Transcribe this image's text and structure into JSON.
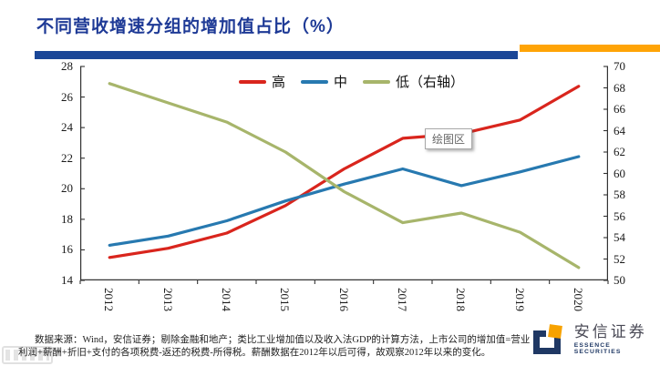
{
  "header": {
    "title": "不同营收增速分组的增加值占比（%）"
  },
  "legend": [
    {
      "label": "高",
      "color": "#D9251D"
    },
    {
      "label": "中",
      "color": "#2779B0"
    },
    {
      "label": "低（右轴）",
      "color": "#A7B56B"
    }
  ],
  "tooltip": {
    "label": "绘图区"
  },
  "chart_data": {
    "type": "line",
    "title": "不同营收增速分组的增加值占比（%）",
    "categories": [
      "2012",
      "2013",
      "2014",
      "2015",
      "2016",
      "2017",
      "2018",
      "2019",
      "2020"
    ],
    "series": [
      {
        "name": "高",
        "axis": "left",
        "color": "#D9251D",
        "values": [
          15.5,
          16.1,
          17.1,
          18.9,
          21.3,
          23.3,
          23.6,
          24.5,
          26.7
        ]
      },
      {
        "name": "中",
        "axis": "left",
        "color": "#2779B0",
        "values": [
          16.3,
          16.9,
          17.9,
          19.2,
          20.3,
          21.3,
          20.2,
          21.1,
          22.1
        ]
      },
      {
        "name": "低（右轴）",
        "axis": "right",
        "color": "#A7B56B",
        "values": [
          68.4,
          66.6,
          64.8,
          62.0,
          58.3,
          55.4,
          56.3,
          54.5,
          51.2
        ]
      }
    ],
    "left_axis": {
      "min": 14,
      "max": 28,
      "ticks": [
        14,
        16,
        18,
        20,
        22,
        24,
        26,
        28
      ]
    },
    "right_axis": {
      "min": 50,
      "max": 70,
      "ticks": [
        50,
        52,
        54,
        56,
        58,
        60,
        62,
        64,
        66,
        68,
        70
      ]
    },
    "legend_position": "top-center",
    "grid": false,
    "annotations": [
      "绘图区"
    ]
  },
  "footer": {
    "line1": "数据来源：Wind，安信证券；剔除金融和地产；类比工业增加值以及收入法GDP的计算方法，上市公司的增加值=营业",
    "line2": "利润+薪酬+折旧+支付的各项税费-返还的税费-所得税。薪酬数据在2012年以后可得，故观察2012年以来的变化。"
  },
  "logo": {
    "name_cn": "安信证券",
    "name_en": "ESSENCE SECURITIES"
  },
  "colors": {
    "title": "#1E3A96",
    "rule_blue": "#1A4697",
    "rule_orange": "#FFA406",
    "axis_line": "#333333",
    "axis_text": "#1a1a1a",
    "tooltip_text": "#666666",
    "logo_navy": "#1F3864",
    "logo_orange": "#F7A200"
  }
}
